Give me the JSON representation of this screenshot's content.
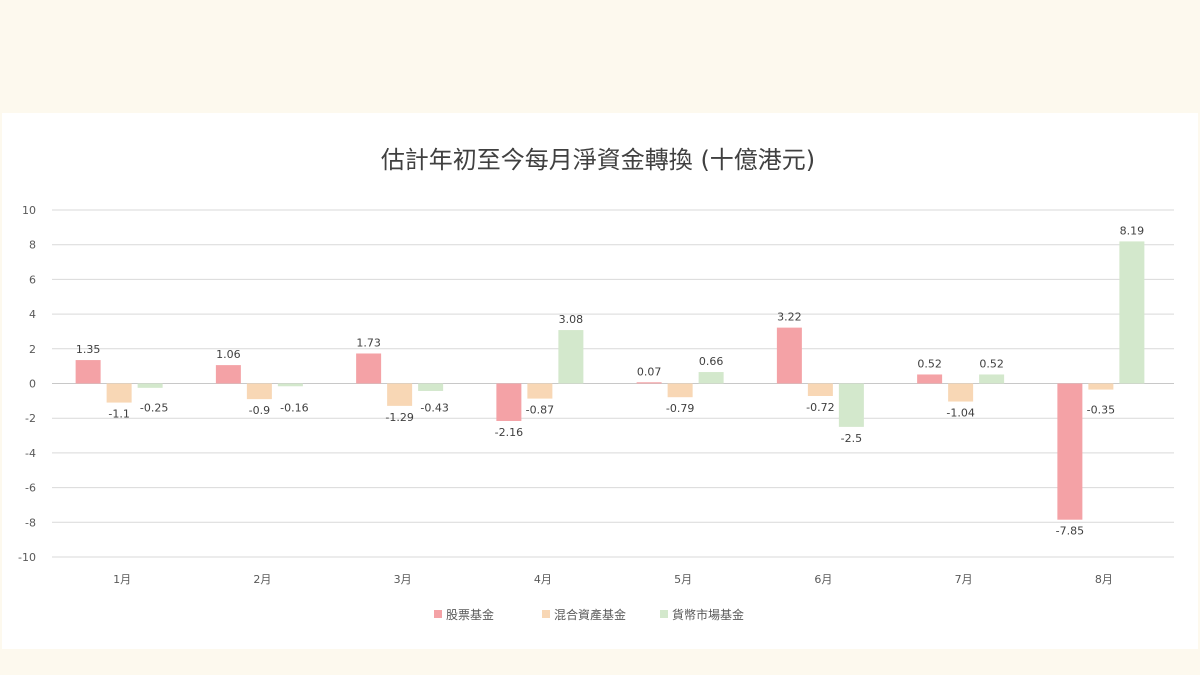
{
  "chart_data": {
    "type": "bar",
    "title": "估計年初至今每月淨資金轉換 (十億港元)",
    "categories": [
      "1月",
      "2月",
      "3月",
      "4月",
      "5月",
      "6月",
      "7月",
      "8月"
    ],
    "series": [
      {
        "name": "股票基金",
        "color": "#f4a2a6",
        "values": [
          1.35,
          1.06,
          1.73,
          -2.16,
          0.07,
          3.22,
          0.52,
          -7.85
        ]
      },
      {
        "name": "混合資產基金",
        "color": "#f8d7b5",
        "values": [
          -1.1,
          -0.9,
          -1.29,
          -0.87,
          -0.79,
          -0.72,
          -1.04,
          -0.35
        ]
      },
      {
        "name": "貨幣市場基金",
        "color": "#d3e8cc",
        "values": [
          -0.25,
          -0.16,
          -0.43,
          3.08,
          0.66,
          -2.5,
          0.52,
          8.19
        ]
      }
    ],
    "data_labels": [
      [
        "1.35",
        "1.06",
        "1.73",
        "-2.16",
        "0.07",
        "3.22",
        "0.52",
        "-7.85"
      ],
      [
        "-1.1",
        "-0.9",
        "-1.29",
        "-0.87",
        "-0.79",
        "-0.72",
        "-1.04",
        "-0.35"
      ],
      [
        "-0.25",
        "-0.16",
        "-0.43",
        "3.08",
        "0.66",
        "-2.5",
        "0.52",
        "8.19"
      ]
    ],
    "yticks": [
      "-10",
      "-8",
      "-6",
      "-4",
      "-2",
      "0",
      "2",
      "4",
      "6",
      "8",
      "10"
    ],
    "ylim": [
      -10,
      10
    ],
    "grid": true,
    "legend": "bottom"
  }
}
